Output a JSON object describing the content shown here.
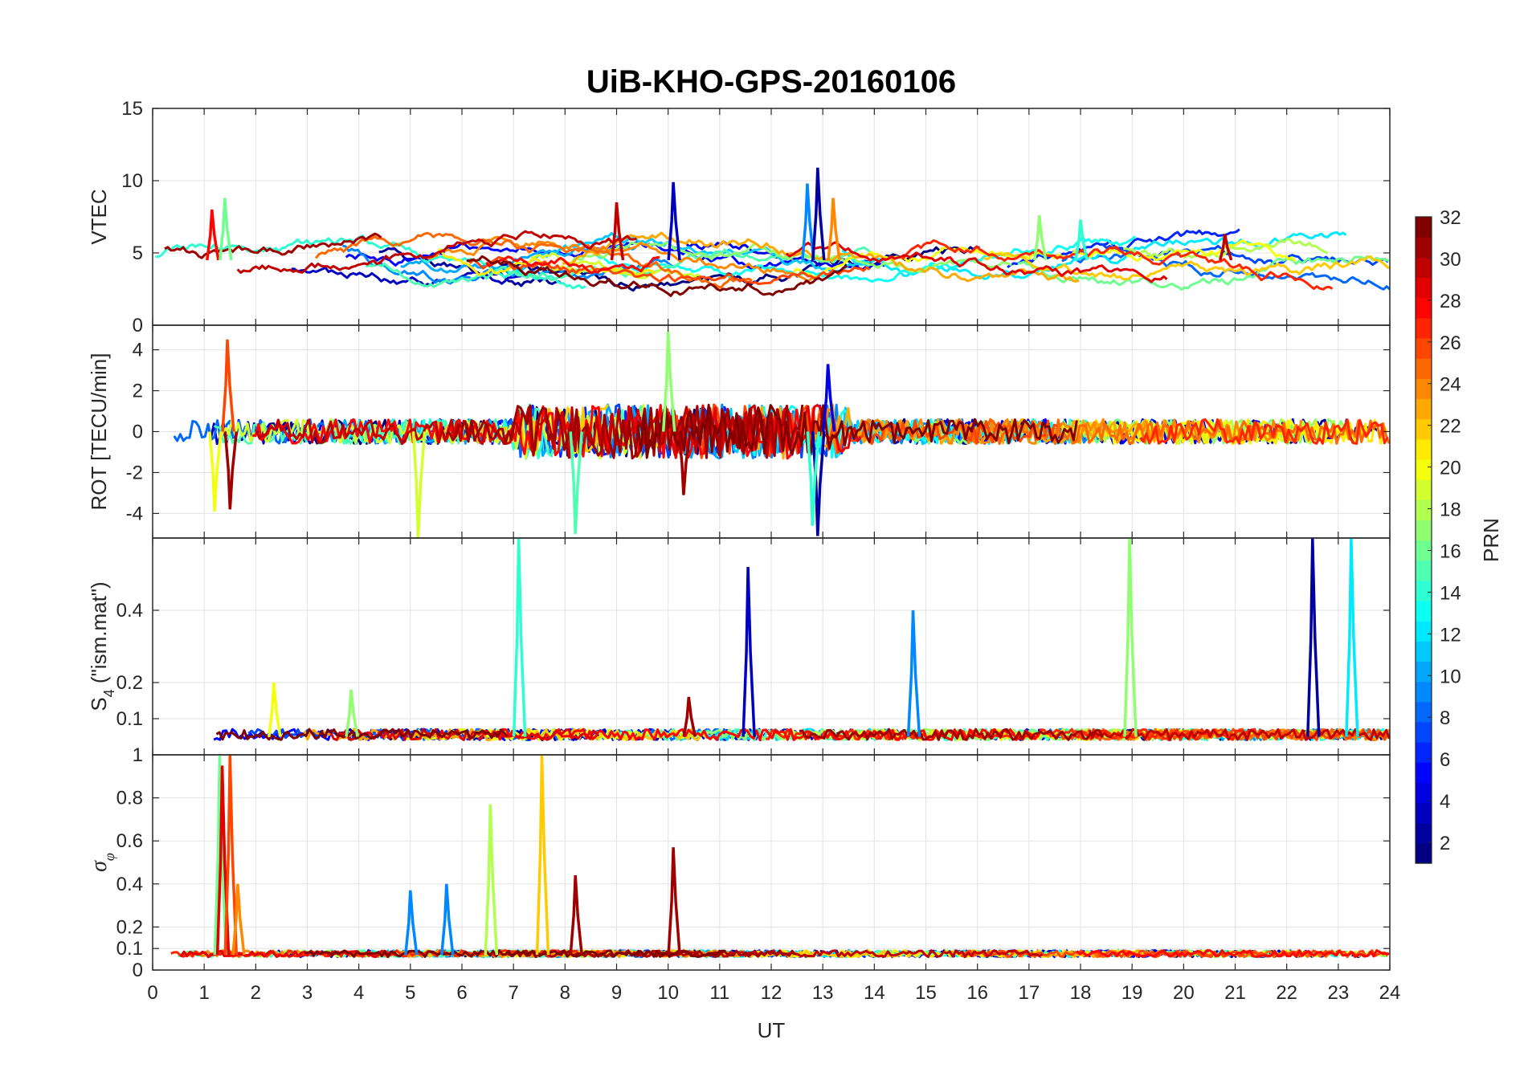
{
  "chart_data": {
    "type": "line",
    "title": "UiB-KHO-GPS-20160106",
    "xlabel": "UT",
    "x_ticks": [
      "0",
      "1",
      "2",
      "3",
      "4",
      "5",
      "6",
      "7",
      "8",
      "9",
      "10",
      "11",
      "12",
      "13",
      "14",
      "15",
      "16",
      "17",
      "18",
      "19",
      "20",
      "21",
      "22",
      "23",
      "24"
    ],
    "xlim": [
      0,
      24
    ],
    "grid": true,
    "colorbar": {
      "label": "PRN",
      "range": [
        1,
        32
      ],
      "ticks": [
        "2",
        "4",
        "6",
        "8",
        "10",
        "12",
        "14",
        "16",
        "18",
        "20",
        "22",
        "24",
        "26",
        "28",
        "30",
        "32"
      ],
      "colormap": "jet"
    },
    "panels": [
      {
        "ylabel": "VTEC",
        "ylim": [
          0,
          15
        ],
        "y_ticks": [
          "0",
          "5",
          "10",
          "15"
        ],
        "baseline": 4.5,
        "noise": 1.0,
        "series_hint": "smooth per-PRN arcs between 2 and 9 TECU, max ~11 near 12.9 UT",
        "peaks": [
          {
            "prn": 28,
            "x": 1.15,
            "y": 8.0
          },
          {
            "prn": 16,
            "x": 1.4,
            "y": 8.8
          },
          {
            "prn": 30,
            "x": 9.0,
            "y": 8.5
          },
          {
            "prn": 3,
            "x": 10.1,
            "y": 9.9
          },
          {
            "prn": 9,
            "x": 12.7,
            "y": 9.8
          },
          {
            "prn": 2,
            "x": 12.9,
            "y": 10.9
          },
          {
            "prn": 24,
            "x": 13.2,
            "y": 8.8
          },
          {
            "prn": 17,
            "x": 17.2,
            "y": 7.6
          },
          {
            "prn": 14,
            "x": 18.0,
            "y": 7.3
          },
          {
            "prn": 30,
            "x": 20.8,
            "y": 6.3
          }
        ]
      },
      {
        "ylabel": "ROT [TECU/min]",
        "ylim": [
          -5.2,
          5.2
        ],
        "y_ticks": [
          "-4",
          "-2",
          "0",
          "2",
          "4"
        ],
        "baseline": 0,
        "noise": 0.6,
        "series_hint": "rate of TEC noise around 0, spikes up to ±5",
        "peaks": [
          {
            "prn": 26,
            "x": 1.45,
            "y": 4.5
          },
          {
            "prn": 31,
            "x": 1.5,
            "y": -3.8
          },
          {
            "prn": 20,
            "x": 1.2,
            "y": -3.9
          },
          {
            "prn": 19,
            "x": 5.15,
            "y": -5.2
          },
          {
            "prn": 15,
            "x": 8.2,
            "y": -5.0
          },
          {
            "prn": 17,
            "x": 10.0,
            "y": 4.9
          },
          {
            "prn": 31,
            "x": 10.3,
            "y": -3.1
          },
          {
            "prn": 2,
            "x": 12.9,
            "y": -5.1
          },
          {
            "prn": 4,
            "x": 13.1,
            "y": 3.3
          },
          {
            "prn": 14,
            "x": 12.8,
            "y": -4.6
          }
        ]
      },
      {
        "ylabel": "S4 (\"ism.mat\")",
        "ylabel_main": "S",
        "ylabel_sub": "4",
        "ylabel_rest": " (\"ism.mat\")",
        "ylim": [
          0,
          0.6
        ],
        "y_ticks": [
          "0.1",
          "0.2",
          "0.4"
        ],
        "baseline": 0.05,
        "noise": 0.015,
        "series_hint": "amplitude scintillation index near 0.05 with isolated spikes",
        "peaks": [
          {
            "prn": 14,
            "x": 7.1,
            "y": 0.6
          },
          {
            "prn": 3,
            "x": 11.55,
            "y": 0.52
          },
          {
            "prn": 9,
            "x": 14.75,
            "y": 0.4
          },
          {
            "prn": 17,
            "x": 18.95,
            "y": 0.6
          },
          {
            "prn": 2,
            "x": 22.5,
            "y": 0.6
          },
          {
            "prn": 12,
            "x": 23.25,
            "y": 0.6
          },
          {
            "prn": 20,
            "x": 2.35,
            "y": 0.2
          },
          {
            "prn": 17,
            "x": 3.85,
            "y": 0.18
          },
          {
            "prn": 31,
            "x": 10.4,
            "y": 0.16
          }
        ]
      },
      {
        "ylabel": "σφ",
        "ylabel_main": "σ",
        "ylabel_sub": "φ",
        "ylim": [
          0,
          1
        ],
        "y_ticks": [
          "0",
          "0.1",
          "0.2",
          "0.4",
          "0.6",
          "0.8",
          "1"
        ],
        "baseline": 0.07,
        "noise": 0.015,
        "series_hint": "phase scintillation index near 0.07 with spikes",
        "peaks": [
          {
            "prn": 16,
            "x": 1.3,
            "y": 1.0
          },
          {
            "prn": 29,
            "x": 1.35,
            "y": 0.95
          },
          {
            "prn": 26,
            "x": 1.5,
            "y": 1.0
          },
          {
            "prn": 24,
            "x": 1.65,
            "y": 0.4
          },
          {
            "prn": 18,
            "x": 6.55,
            "y": 0.77
          },
          {
            "prn": 22,
            "x": 7.55,
            "y": 1.0
          },
          {
            "prn": 31,
            "x": 10.1,
            "y": 0.57
          },
          {
            "prn": 31,
            "x": 8.2,
            "y": 0.44
          },
          {
            "prn": 9,
            "x": 5.7,
            "y": 0.4
          },
          {
            "prn": 9,
            "x": 5.0,
            "y": 0.37
          }
        ]
      }
    ]
  }
}
